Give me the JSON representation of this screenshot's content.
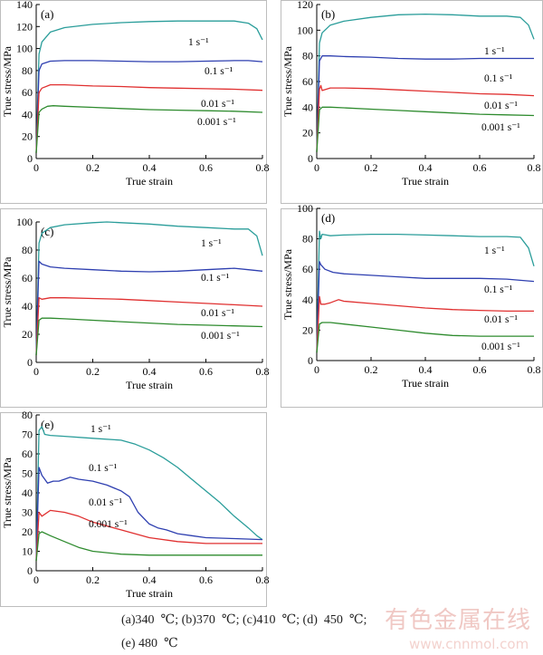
{
  "figure": {
    "caption_line1": "(a)340  ℃; (b)370  ℃; (c)410  ℃; (d)  450  ℃;",
    "caption_line2": "(e) 480  ℃",
    "watermark_cn": "有色金属在线",
    "watermark_url": "www.cnnmol.com"
  },
  "chart_data": [
    {
      "type": "line",
      "panel_label": "(a)",
      "xlabel": "True strain",
      "ylabel": "True stress/MPa",
      "xlim": [
        0,
        0.8
      ],
      "ylim": [
        0,
        140
      ],
      "xticks": [
        0,
        0.2,
        0.4,
        0.6,
        0.8
      ],
      "yticks": [
        0,
        20,
        40,
        60,
        80,
        100,
        120,
        140
      ],
      "series": [
        {
          "name": "1 s⁻¹",
          "color": "#2a9d9a",
          "x": [
            0,
            0.01,
            0.02,
            0.05,
            0.1,
            0.2,
            0.3,
            0.4,
            0.5,
            0.6,
            0.7,
            0.75,
            0.78,
            0.8
          ],
          "y": [
            5,
            95,
            106,
            115,
            119,
            122,
            123.5,
            124.5,
            125,
            125,
            125,
            123,
            118,
            108
          ]
        },
        {
          "name": "0.1 s⁻¹",
          "color": "#2e3fb0",
          "x": [
            0,
            0.01,
            0.02,
            0.05,
            0.1,
            0.2,
            0.3,
            0.4,
            0.5,
            0.6,
            0.7,
            0.75,
            0.8
          ],
          "y": [
            5,
            80,
            86,
            88.5,
            89,
            89,
            88.5,
            88,
            88,
            88.5,
            89,
            89,
            88
          ]
        },
        {
          "name": "0.01 s⁻¹",
          "color": "#e03030",
          "x": [
            0,
            0.01,
            0.02,
            0.05,
            0.1,
            0.2,
            0.3,
            0.4,
            0.5,
            0.6,
            0.7,
            0.8
          ],
          "y": [
            5,
            60,
            64,
            67,
            67,
            66,
            65.5,
            64.5,
            64,
            63.5,
            63,
            62
          ]
        },
        {
          "name": "0.001 s⁻¹",
          "color": "#2e8b2e",
          "x": [
            0,
            0.01,
            0.02,
            0.04,
            0.06,
            0.1,
            0.2,
            0.3,
            0.4,
            0.5,
            0.6,
            0.7,
            0.8
          ],
          "y": [
            5,
            42,
            45,
            47.5,
            48,
            47.5,
            46.5,
            45.5,
            44.5,
            44,
            43.5,
            43,
            42
          ]
        }
      ]
    },
    {
      "type": "line",
      "panel_label": "(b)",
      "xlabel": "True strain",
      "ylabel": "True stress/MPa",
      "xlim": [
        0,
        0.8
      ],
      "ylim": [
        0,
        120
      ],
      "xticks": [
        0,
        0.2,
        0.4,
        0.6,
        0.8
      ],
      "yticks": [
        0,
        20,
        40,
        60,
        80,
        100,
        120
      ],
      "series": [
        {
          "name": "1 s⁻¹",
          "color": "#2a9d9a",
          "x": [
            0,
            0.01,
            0.02,
            0.05,
            0.1,
            0.2,
            0.3,
            0.4,
            0.5,
            0.6,
            0.7,
            0.75,
            0.78,
            0.8
          ],
          "y": [
            5,
            90,
            98,
            104,
            107,
            110,
            112,
            112.5,
            112,
            111,
            111,
            110,
            104,
            93
          ]
        },
        {
          "name": "0.1 s⁻¹",
          "color": "#2e3fb0",
          "x": [
            0,
            0.01,
            0.02,
            0.05,
            0.1,
            0.2,
            0.3,
            0.4,
            0.5,
            0.6,
            0.7,
            0.8
          ],
          "y": [
            5,
            76,
            80,
            80,
            79.5,
            79,
            78,
            77.5,
            77.5,
            78,
            78,
            78
          ]
        },
        {
          "name": "0.01 s⁻¹",
          "color": "#e03030",
          "x": [
            0,
            0.01,
            0.015,
            0.02,
            0.05,
            0.1,
            0.2,
            0.3,
            0.4,
            0.5,
            0.6,
            0.7,
            0.8
          ],
          "y": [
            5,
            54,
            57,
            53,
            55,
            55,
            54.5,
            53.5,
            52.5,
            51.5,
            50.5,
            50,
            49
          ]
        },
        {
          "name": "0.001 s⁻¹",
          "color": "#2e8b2e",
          "x": [
            0,
            0.01,
            0.02,
            0.05,
            0.1,
            0.2,
            0.3,
            0.4,
            0.5,
            0.6,
            0.7,
            0.8
          ],
          "y": [
            5,
            38,
            40,
            40,
            39.5,
            38.5,
            37.5,
            36.5,
            35.5,
            34.5,
            34,
            33.5
          ]
        }
      ]
    },
    {
      "type": "line",
      "panel_label": "(c)",
      "xlabel": "True strain",
      "ylabel": "True stress/MPa",
      "xlim": [
        0,
        0.8
      ],
      "ylim": [
        0,
        100
      ],
      "xticks": [
        0,
        0.2,
        0.4,
        0.6,
        0.8
      ],
      "yticks": [
        0,
        20,
        40,
        60,
        80,
        100
      ],
      "series": [
        {
          "name": "1 s⁻¹",
          "color": "#2a9d9a",
          "x": [
            0,
            0.01,
            0.02,
            0.05,
            0.1,
            0.2,
            0.25,
            0.3,
            0.4,
            0.5,
            0.6,
            0.7,
            0.75,
            0.78,
            0.8
          ],
          "y": [
            5,
            85,
            92,
            96,
            98,
            99.5,
            100,
            99.5,
            98.5,
            97,
            96,
            95,
            95,
            90,
            76
          ]
        },
        {
          "name": "0.1 s⁻¹",
          "color": "#2e3fb0",
          "x": [
            0,
            0.01,
            0.02,
            0.05,
            0.1,
            0.2,
            0.3,
            0.4,
            0.5,
            0.6,
            0.7,
            0.75,
            0.8
          ],
          "y": [
            5,
            72,
            70,
            68,
            67,
            66,
            65,
            64.5,
            65,
            66,
            67,
            66,
            65
          ]
        },
        {
          "name": "0.01 s⁻¹",
          "color": "#e03030",
          "x": [
            0,
            0.01,
            0.02,
            0.05,
            0.1,
            0.2,
            0.3,
            0.4,
            0.5,
            0.6,
            0.7,
            0.8
          ],
          "y": [
            5,
            46,
            45,
            46,
            46,
            45.5,
            45,
            44,
            43,
            42,
            41,
            40
          ]
        },
        {
          "name": "0.001 s⁻¹",
          "color": "#2e8b2e",
          "x": [
            0,
            0.01,
            0.02,
            0.05,
            0.1,
            0.2,
            0.3,
            0.4,
            0.5,
            0.6,
            0.7,
            0.8
          ],
          "y": [
            5,
            30,
            31.5,
            31.5,
            31,
            30,
            29,
            28,
            27,
            26.5,
            26,
            25.5
          ]
        }
      ]
    },
    {
      "type": "line",
      "panel_label": "(d)",
      "xlabel": "True strain",
      "ylabel": "True stress/MPa",
      "xlim": [
        0,
        0.8
      ],
      "ylim": [
        0,
        100
      ],
      "xticks": [
        0,
        0.2,
        0.4,
        0.6,
        0.8
      ],
      "yticks": [
        0,
        20,
        40,
        60,
        80,
        100
      ],
      "series": [
        {
          "name": "1 s⁻¹",
          "color": "#2a9d9a",
          "x": [
            0,
            0.01,
            0.015,
            0.02,
            0.05,
            0.1,
            0.2,
            0.3,
            0.4,
            0.5,
            0.6,
            0.7,
            0.75,
            0.78,
            0.8
          ],
          "y": [
            5,
            85,
            80,
            83,
            82,
            82.5,
            83,
            83,
            82.5,
            82,
            81.5,
            81.5,
            81,
            74,
            62
          ]
        },
        {
          "name": "0.1 s⁻¹",
          "color": "#2e3fb0",
          "x": [
            0,
            0.01,
            0.015,
            0.03,
            0.06,
            0.1,
            0.2,
            0.3,
            0.4,
            0.5,
            0.6,
            0.7,
            0.8
          ],
          "y": [
            5,
            65,
            63,
            60,
            58,
            57,
            56,
            55,
            54,
            54,
            54,
            53.5,
            52
          ]
        },
        {
          "name": "0.01 s⁻¹",
          "color": "#e03030",
          "x": [
            0,
            0.01,
            0.015,
            0.03,
            0.05,
            0.08,
            0.1,
            0.2,
            0.3,
            0.4,
            0.5,
            0.6,
            0.7,
            0.8
          ],
          "y": [
            5,
            42,
            37,
            37,
            38,
            40,
            39,
            37.5,
            36,
            34.5,
            33.5,
            33,
            32.5,
            32.5
          ]
        },
        {
          "name": "0.001 s⁻¹",
          "color": "#2e8b2e",
          "x": [
            0,
            0.01,
            0.02,
            0.05,
            0.1,
            0.2,
            0.3,
            0.4,
            0.5,
            0.6,
            0.7,
            0.8
          ],
          "y": [
            5,
            24,
            25,
            25,
            24,
            22,
            20,
            18,
            16.5,
            16,
            16,
            16
          ]
        }
      ]
    },
    {
      "type": "line",
      "panel_label": "(e)",
      "xlabel": "True strain",
      "ylabel": "True stress/MPa",
      "xlim": [
        0,
        0.8
      ],
      "ylim": [
        0,
        80
      ],
      "xticks": [
        0,
        0.2,
        0.4,
        0.6,
        0.8
      ],
      "yticks": [
        0,
        10,
        20,
        30,
        40,
        50,
        60,
        70,
        80
      ],
      "series": [
        {
          "name": "1 s⁻¹",
          "color": "#2a9d9a",
          "x": [
            0,
            0.01,
            0.02,
            0.03,
            0.05,
            0.1,
            0.2,
            0.3,
            0.35,
            0.4,
            0.45,
            0.5,
            0.55,
            0.6,
            0.65,
            0.7,
            0.75,
            0.78,
            0.8
          ],
          "y": [
            5,
            72,
            74,
            70,
            69.5,
            69,
            68,
            67,
            65,
            62,
            58,
            53,
            47,
            41,
            35,
            28,
            22,
            18,
            16
          ]
        },
        {
          "name": "0.1 s⁻¹",
          "color": "#2e3fb0",
          "x": [
            0,
            0.01,
            0.02,
            0.04,
            0.06,
            0.08,
            0.1,
            0.12,
            0.15,
            0.2,
            0.25,
            0.3,
            0.33,
            0.36,
            0.4,
            0.43,
            0.46,
            0.5,
            0.55,
            0.6,
            0.7,
            0.8
          ],
          "y": [
            5,
            53,
            49,
            45,
            46,
            46,
            47,
            48,
            47,
            46,
            44,
            41,
            38,
            30,
            24,
            22,
            21,
            19,
            18,
            17,
            16.5,
            16
          ]
        },
        {
          "name": "0.01 s⁻¹",
          "color": "#e03030",
          "x": [
            0,
            0.01,
            0.02,
            0.05,
            0.1,
            0.15,
            0.2,
            0.3,
            0.4,
            0.5,
            0.6,
            0.7,
            0.8
          ],
          "y": [
            5,
            30,
            28,
            31,
            30,
            28,
            25,
            21,
            17,
            15,
            14,
            14,
            14
          ]
        },
        {
          "name": "0.001 s⁻¹",
          "color": "#2e8b2e",
          "x": [
            0,
            0.01,
            0.02,
            0.05,
            0.1,
            0.15,
            0.2,
            0.3,
            0.4,
            0.5,
            0.6,
            0.7,
            0.8
          ],
          "y": [
            5,
            19,
            20,
            18,
            15,
            12,
            10,
            8.5,
            8,
            8,
            8,
            8,
            8
          ]
        }
      ]
    }
  ]
}
